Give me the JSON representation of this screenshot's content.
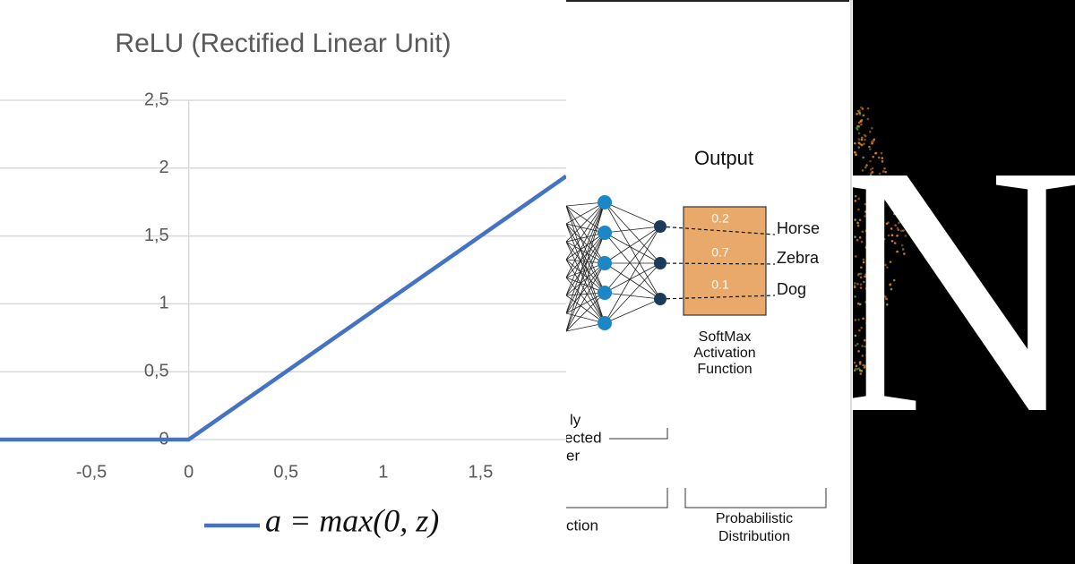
{
  "chart_data": {
    "type": "line",
    "title": "ReLU (Rectified Linear Unit)",
    "x": [
      -0.97,
      0,
      1.94
    ],
    "series": [
      {
        "name": "a = max(0, z)",
        "color": "#4472c4",
        "values": [
          0,
          0,
          1.94
        ]
      }
    ],
    "xlim": [
      -0.97,
      1.94
    ],
    "xticks": [
      {
        "value": -0.5,
        "label": "-0,5"
      },
      0,
      {
        "value": 0.5,
        "label": "0,5"
      },
      1,
      {
        "value": 1.5,
        "label": "1,5"
      }
    ],
    "ylim": [
      0,
      2.5
    ],
    "yticks": [
      0,
      {
        "value": 0.5,
        "label": "0,5"
      },
      1,
      {
        "value": 1.5,
        "label": "1,5"
      },
      2,
      {
        "value": 2.5,
        "label": "2,5"
      }
    ],
    "grid": true
  },
  "diagram": {
    "title": "Output",
    "outputs": [
      {
        "value": 0.2,
        "label": "Horse"
      },
      {
        "value": 0.7,
        "label": "Zebra"
      },
      {
        "value": 0.1,
        "label": "Dog"
      }
    ],
    "softmax_label": [
      "SoftMax",
      "Activation",
      "Function"
    ],
    "layer_label": [
      "ly",
      "ected",
      "er"
    ],
    "bottom_left_label": "ction",
    "bottom_right_label": [
      "Probabilistic",
      "Distribution"
    ]
  },
  "logo": {
    "letter": "N"
  }
}
